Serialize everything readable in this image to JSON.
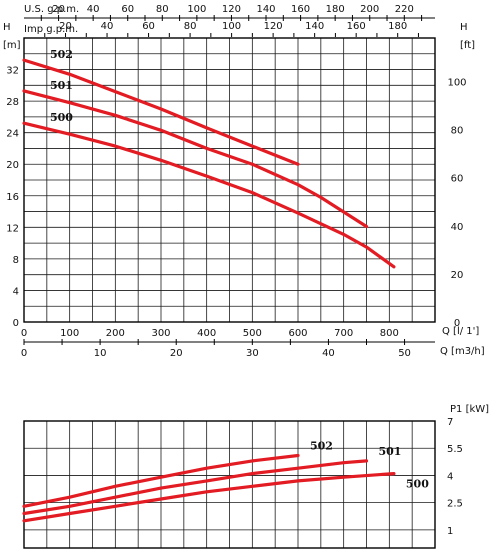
{
  "header": {
    "us_label": "U.S. g.p.m.",
    "imp_label": "Imp g.p.m.",
    "h_left": "H",
    "h_left_unit": "[m]",
    "h_right": "H",
    "h_right_unit": "[ft]",
    "q_ls_label": "Q [l/ 1']",
    "q_m3h_label": "Q [m3/h]",
    "p1_label": "P1 [kW]"
  },
  "colors": {
    "curve": "#e31b23",
    "grid": "#1a1a1a"
  },
  "chart_data": [
    {
      "type": "line",
      "title": "",
      "xlabel": "Q [l/ 1']",
      "ylabel": "H [m]",
      "xlim": [
        0,
        900
      ],
      "ylim": [
        0,
        36
      ],
      "x_ticks": [
        0,
        100,
        200,
        300,
        400,
        500,
        600,
        700,
        800
      ],
      "y_ticks": [
        0,
        4,
        8,
        12,
        16,
        20,
        24,
        28,
        32
      ],
      "secondary_axes": {
        "ft_ticks": [
          0,
          20,
          40,
          60,
          80,
          100
        ],
        "m3h_ticks": [
          0,
          10,
          20,
          30,
          40,
          50
        ],
        "us_gpm_ticks": [
          20,
          40,
          60,
          80,
          100,
          120,
          140,
          160,
          180,
          200,
          220
        ],
        "imp_gpm_ticks": [
          20,
          40,
          60,
          80,
          100,
          120,
          140,
          160,
          180
        ]
      },
      "grid": true,
      "series": [
        {
          "name": "502",
          "x": [
            0,
            100,
            200,
            300,
            400,
            500,
            600
          ],
          "y": [
            33.2,
            31.4,
            29.2,
            27.0,
            24.6,
            22.3,
            20.0
          ]
        },
        {
          "name": "501",
          "x": [
            0,
            100,
            200,
            300,
            400,
            500,
            600,
            650,
            750
          ],
          "y": [
            29.3,
            27.8,
            26.2,
            24.3,
            22.0,
            20.0,
            17.4,
            15.8,
            12.1
          ]
        },
        {
          "name": "500",
          "x": [
            0,
            100,
            200,
            300,
            400,
            500,
            600,
            700,
            750,
            810
          ],
          "y": [
            25.2,
            23.8,
            22.3,
            20.5,
            18.5,
            16.4,
            13.8,
            11.1,
            9.5,
            7.0
          ]
        }
      ]
    },
    {
      "type": "line",
      "title": "",
      "xlabel": "",
      "ylabel": "P1 [kW]",
      "xlim": [
        0,
        900
      ],
      "ylim": [
        0,
        7
      ],
      "y_ticks": [
        1,
        2.5,
        4,
        5.5,
        7
      ],
      "grid": true,
      "series": [
        {
          "name": "502",
          "x": [
            0,
            100,
            200,
            300,
            400,
            500,
            600
          ],
          "y": [
            2.3,
            2.8,
            3.4,
            3.9,
            4.4,
            4.8,
            5.1
          ]
        },
        {
          "name": "501",
          "x": [
            0,
            100,
            200,
            300,
            400,
            500,
            600,
            700,
            750
          ],
          "y": [
            1.9,
            2.3,
            2.8,
            3.3,
            3.7,
            4.1,
            4.4,
            4.7,
            4.8
          ]
        },
        {
          "name": "500",
          "x": [
            0,
            100,
            200,
            300,
            400,
            500,
            600,
            700,
            810
          ],
          "y": [
            1.5,
            1.9,
            2.3,
            2.7,
            3.1,
            3.4,
            3.7,
            3.9,
            4.1
          ]
        }
      ]
    }
  ]
}
